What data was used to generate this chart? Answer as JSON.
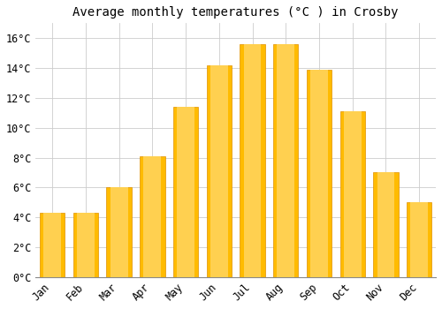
{
  "title": "Average monthly temperatures (°C ) in Crosby",
  "months": [
    "Jan",
    "Feb",
    "Mar",
    "Apr",
    "May",
    "Jun",
    "Jul",
    "Aug",
    "Sep",
    "Oct",
    "Nov",
    "Dec"
  ],
  "values": [
    4.3,
    4.3,
    6.0,
    8.1,
    11.4,
    14.2,
    15.6,
    15.6,
    13.9,
    11.1,
    7.0,
    5.0
  ],
  "bar_color": "#FFBB00",
  "bar_edge_color": "#E09000",
  "background_color": "#FFFFFF",
  "plot_bg_color": "#FFFFFF",
  "grid_color": "#CCCCCC",
  "ylim": [
    0,
    17
  ],
  "ytick_step": 2,
  "title_fontsize": 10,
  "tick_fontsize": 8.5,
  "font_family": "monospace"
}
